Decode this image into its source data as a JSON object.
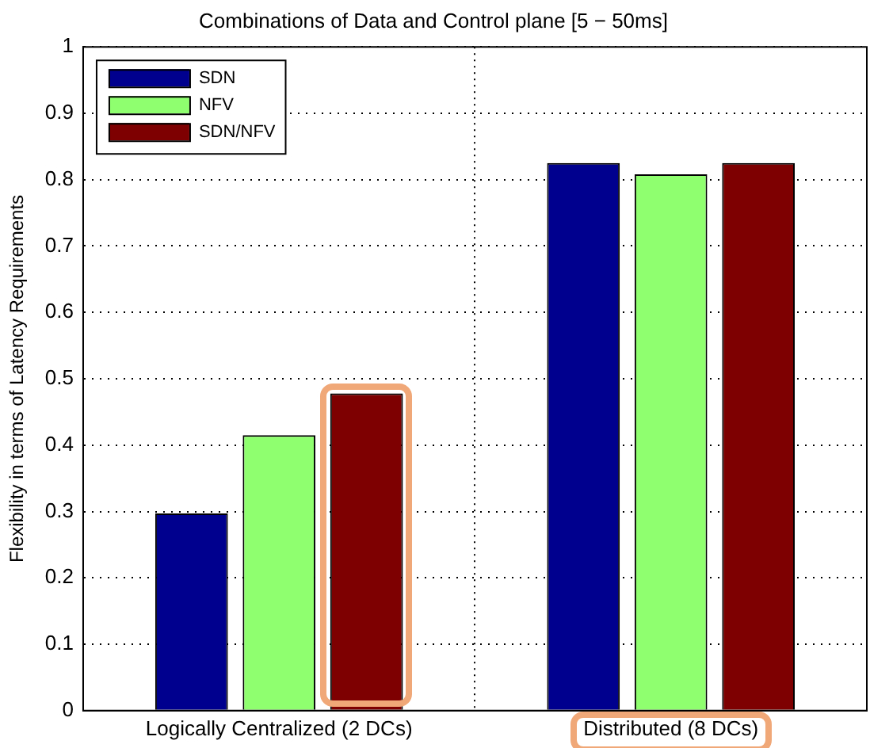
{
  "chart_data": {
    "type": "bar",
    "title": "Combinations of Data and Control plane [5 − 50ms]",
    "ylabel": "Flexibility in terms of Latency Requirements",
    "categories": [
      "Logically Centralized (2 DCs)",
      "Distributed (8 DCs)"
    ],
    "series": [
      {
        "name": "SDN",
        "color": "#00008f",
        "values": [
          0.297,
          0.825
        ]
      },
      {
        "name": "NFV",
        "color": "#8fff6f",
        "values": [
          0.415,
          0.808
        ]
      },
      {
        "name": "SDN/NFV",
        "color": "#7f0000",
        "values": [
          0.478,
          0.825
        ]
      }
    ],
    "ylim": [
      0,
      1
    ],
    "yticks": [
      0,
      0.1,
      0.2,
      0.3,
      0.4,
      0.5,
      0.6,
      0.7,
      0.8,
      0.9,
      1
    ],
    "grid": true,
    "legend": "top left"
  }
}
